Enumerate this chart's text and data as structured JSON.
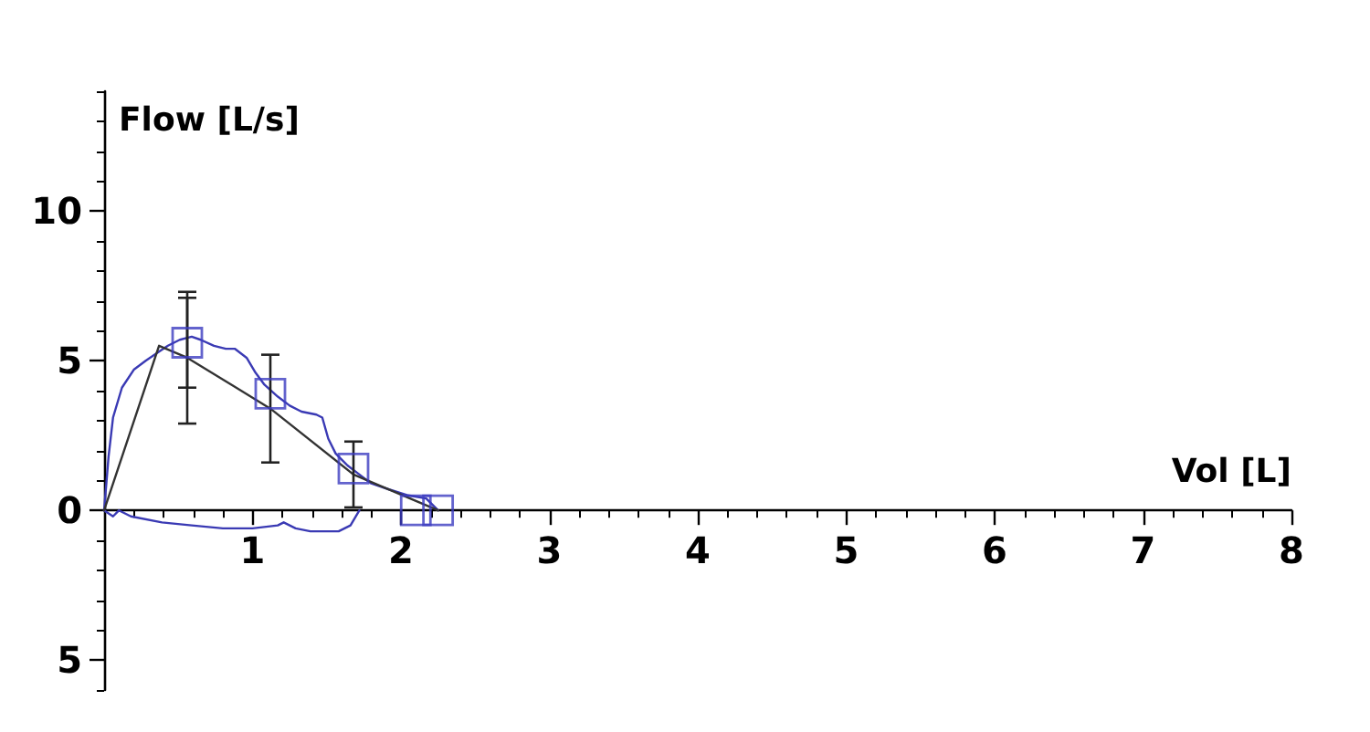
{
  "chart_data": {
    "type": "line",
    "xlabel": "Vol [L]",
    "ylabel": "Flow [L/s]",
    "xlim": [
      0,
      8
    ],
    "ylim": [
      -6,
      14
    ],
    "xticks": [
      {
        "value": 0.2,
        "label": null
      },
      {
        "value": 0.4,
        "label": null
      },
      {
        "value": 0.6,
        "label": null
      },
      {
        "value": 0.8,
        "label": null
      },
      1,
      {
        "value": 1.2,
        "label": null
      },
      {
        "value": 1.4,
        "label": null
      },
      {
        "value": 1.6,
        "label": null
      },
      {
        "value": 1.8,
        "label": null
      },
      2,
      {
        "value": 2.2,
        "label": null
      },
      {
        "value": 2.4,
        "label": null
      },
      {
        "value": 2.6,
        "label": null
      },
      {
        "value": 2.8,
        "label": null
      },
      3,
      {
        "value": 3.2,
        "label": null
      },
      {
        "value": 3.4,
        "label": null
      },
      {
        "value": 3.6,
        "label": null
      },
      {
        "value": 3.8,
        "label": null
      },
      4,
      {
        "value": 4.2,
        "label": null
      },
      {
        "value": 4.4,
        "label": null
      },
      {
        "value": 4.6,
        "label": null
      },
      {
        "value": 4.8,
        "label": null
      },
      5,
      {
        "value": 5.2,
        "label": null
      },
      {
        "value": 5.4,
        "label": null
      },
      {
        "value": 5.6,
        "label": null
      },
      {
        "value": 5.8,
        "label": null
      },
      6,
      {
        "value": 6.2,
        "label": null
      },
      {
        "value": 6.4,
        "label": null
      },
      {
        "value": 6.6,
        "label": null
      },
      {
        "value": 6.8,
        "label": null
      },
      7,
      {
        "value": 7.2,
        "label": null
      },
      {
        "value": 7.4,
        "label": null
      },
      {
        "value": 7.6,
        "label": null
      },
      {
        "value": 7.8,
        "label": null
      },
      8
    ],
    "yticks": [
      {
        "value": -6,
        "label": null
      },
      {
        "value": -5,
        "label": "5"
      },
      {
        "value": -4,
        "label": null
      },
      {
        "value": -3,
        "label": null
      },
      {
        "value": -2,
        "label": null
      },
      {
        "value": -1,
        "label": null
      },
      0,
      {
        "value": 1,
        "label": null
      },
      {
        "value": 2,
        "label": null
      },
      {
        "value": 3,
        "label": null
      },
      {
        "value": 4,
        "label": null
      },
      5,
      {
        "value": 6,
        "label": null
      },
      {
        "value": 7,
        "label": null
      },
      {
        "value": 8,
        "label": null
      },
      {
        "value": 9,
        "label": null
      },
      10,
      {
        "value": 11,
        "label": null
      },
      {
        "value": 12,
        "label": null
      },
      {
        "value": 13,
        "label": null
      },
      {
        "value": 14,
        "label": null
      }
    ],
    "series": [
      {
        "color": "#3a3ab4",
        "marker": "none",
        "x": [
          0,
          0.03,
          0.06,
          0.12,
          0.2,
          0.28,
          0.37,
          0.43,
          0.51,
          0.59,
          0.65,
          0.74,
          0.82,
          0.88,
          0.96,
          1.02,
          1.08,
          1.17,
          1.25,
          1.33,
          1.43,
          1.47,
          1.51,
          1.56,
          1.64,
          1.72,
          1.8,
          1.92,
          2.05,
          2.17,
          2.25
        ],
        "values": [
          0,
          1.8,
          3.1,
          4.1,
          4.7,
          5.0,
          5.3,
          5.5,
          5.7,
          5.8,
          5.7,
          5.5,
          5.4,
          5.4,
          5.1,
          4.6,
          4.2,
          3.8,
          3.5,
          3.3,
          3.2,
          3.1,
          2.4,
          1.9,
          1.5,
          1.2,
          0.9,
          0.7,
          0.5,
          0.4,
          0
        ]
      },
      {
        "color": "#3a3ab4",
        "marker": "none",
        "x": [
          0,
          0.06,
          0.1,
          0.18,
          0.39,
          0.59,
          0.8,
          1,
          1.17,
          1.21,
          1.29,
          1.39,
          1.58,
          1.66,
          1.72
        ],
        "values": [
          0,
          -0.2,
          0,
          -0.2,
          -0.4,
          -0.5,
          -0.6,
          -0.6,
          -0.5,
          -0.4,
          -0.6,
          -0.7,
          -0.7,
          -0.5,
          0
        ]
      },
      {
        "color": "#333333",
        "marker": "none",
        "x": [
          0,
          0.37,
          0.56,
          1.12,
          1.68,
          2.25
        ],
        "values": [
          0,
          5.5,
          5.1,
          3.4,
          1.2,
          0
        ],
        "errors": [
          null,
          null,
          2.2,
          1.8,
          1.1,
          null
        ]
      },
      {
        "type": "scatter",
        "color": "#3c3cc0",
        "marker": "square",
        "x": [
          0.56,
          1.12,
          1.68,
          2.1,
          2.25
        ],
        "values": [
          5.6,
          3.9,
          1.4,
          0,
          0
        ],
        "errors": [
          1.5,
          null,
          null,
          null,
          null
        ]
      }
    ]
  }
}
